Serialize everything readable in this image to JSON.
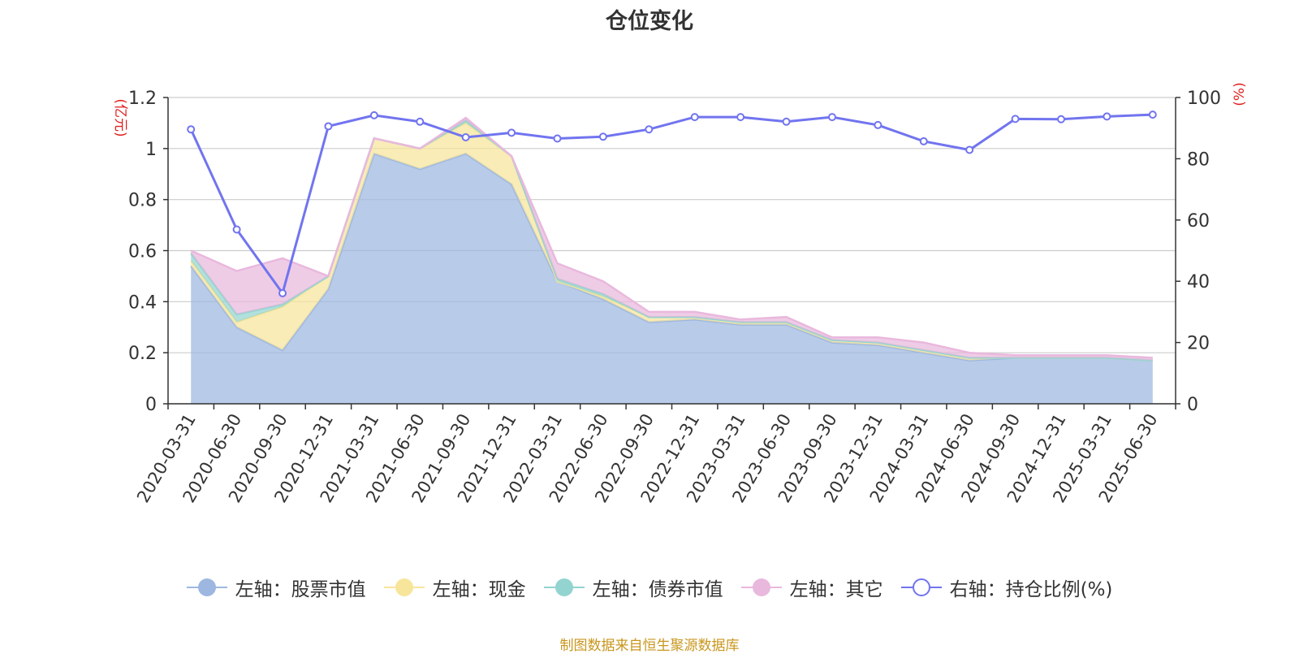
{
  "chart_data": {
    "type": "area",
    "title": "仓位变化",
    "left_axis_unit": "(亿元)",
    "right_axis_unit": "(%)",
    "ylim_left": [
      0,
      1.2
    ],
    "ylim_right": [
      0,
      100
    ],
    "left_ticks": [
      "0",
      "0.2",
      "0.4",
      "0.6",
      "0.8",
      "1",
      "1.2"
    ],
    "right_ticks": [
      "0",
      "20",
      "40",
      "60",
      "80",
      "100"
    ],
    "grid": true,
    "stacked": true,
    "legend_position": "bottom",
    "categories": [
      "2020-03-31",
      "2020-06-30",
      "2020-09-30",
      "2020-12-31",
      "2021-03-31",
      "2021-06-30",
      "2021-09-30",
      "2021-12-31",
      "2022-03-31",
      "2022-06-30",
      "2022-09-30",
      "2022-12-31",
      "2023-03-31",
      "2023-06-30",
      "2023-09-30",
      "2023-12-31",
      "2024-03-31",
      "2024-06-30",
      "2024-09-30",
      "2024-12-31",
      "2025-03-31",
      "2025-06-30"
    ],
    "series": [
      {
        "name": "左轴：股票市值",
        "axis": "left",
        "type": "area",
        "color": "#9db7e0",
        "values": [
          0.54,
          0.3,
          0.21,
          0.45,
          0.98,
          0.92,
          0.98,
          0.86,
          0.48,
          0.41,
          0.32,
          0.33,
          0.31,
          0.31,
          0.24,
          0.23,
          0.2,
          0.17,
          0.18,
          0.18,
          0.18,
          0.17
        ]
      },
      {
        "name": "左轴：现金",
        "axis": "left",
        "type": "area",
        "color": "#f7e59b",
        "values": [
          0.02,
          0.02,
          0.17,
          0.05,
          0.06,
          0.08,
          0.12,
          0.11,
          0.0,
          0.01,
          0.02,
          0.01,
          0.01,
          0.01,
          0.01,
          0.01,
          0.01,
          0.01,
          0.0,
          0.0,
          0.0,
          0.0
        ]
      },
      {
        "name": "左轴：债券市值",
        "axis": "left",
        "type": "area",
        "color": "#93d4d0",
        "values": [
          0.03,
          0.03,
          0.01,
          0.0,
          0.0,
          0.0,
          0.01,
          0.0,
          0.01,
          0.01,
          0.0,
          0.0,
          0.0,
          0.0,
          0.0,
          0.0,
          0.0,
          0.0,
          0.0,
          0.0,
          0.0,
          0.0
        ]
      },
      {
        "name": "左轴：其它",
        "axis": "left",
        "type": "area",
        "color": "#e9b8dd",
        "values": [
          0.01,
          0.17,
          0.18,
          0.0,
          0.0,
          0.0,
          0.01,
          0.0,
          0.06,
          0.05,
          0.02,
          0.02,
          0.01,
          0.02,
          0.01,
          0.02,
          0.03,
          0.02,
          0.01,
          0.01,
          0.01,
          0.01
        ]
      },
      {
        "name": "右轴：持仓比例(%)",
        "axis": "right",
        "type": "line",
        "color": "#7174ef",
        "values": [
          89.6,
          56.9,
          36.1,
          90.6,
          94.2,
          92.1,
          87.0,
          88.5,
          86.6,
          87.2,
          89.6,
          93.6,
          93.6,
          92.1,
          93.6,
          91.0,
          85.7,
          82.9,
          93.0,
          92.9,
          93.8,
          94.4
        ]
      }
    ]
  },
  "legend": {
    "items": [
      {
        "label": "左轴：股票市值",
        "color": "#9db7e0",
        "style": "filled"
      },
      {
        "label": "左轴：现金",
        "color": "#f7e59b",
        "style": "filled"
      },
      {
        "label": "左轴：债券市值",
        "color": "#93d4d0",
        "style": "filled"
      },
      {
        "label": "左轴：其它",
        "color": "#e9b8dd",
        "style": "filled"
      },
      {
        "label": "右轴：持仓比例(%)",
        "color": "#7174ef",
        "style": "hollow"
      }
    ]
  },
  "footer": {
    "source": "制图数据来自恒生聚源数据库"
  }
}
